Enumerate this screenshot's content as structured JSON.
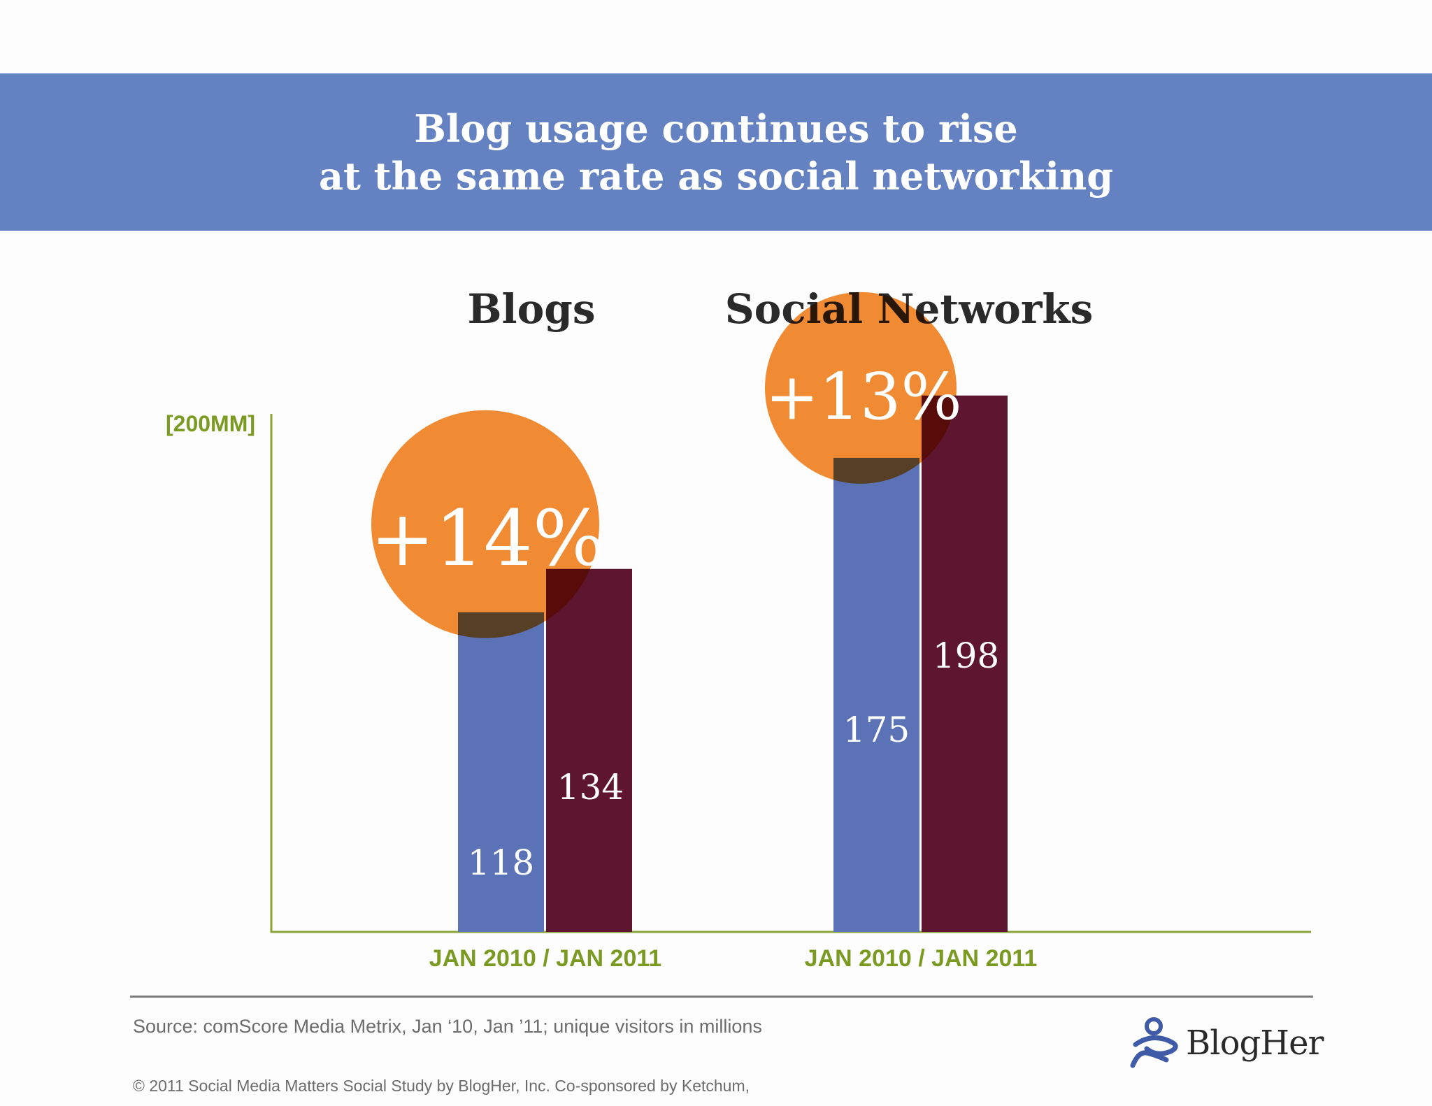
{
  "header": {
    "title_line1": "Blog usage continues to rise",
    "title_line2": "at the same rate as social networking"
  },
  "chart_data": {
    "type": "bar",
    "ylabel": "[200MM]",
    "ylim": [
      0,
      200
    ],
    "grid": false,
    "groups": [
      {
        "title": "Blogs",
        "category_label": "JAN 2010 / JAN 2011",
        "growth_label": "+14%",
        "values": [
          118,
          134
        ],
        "value_labels": [
          "118",
          "134"
        ]
      },
      {
        "title": "Social Networks",
        "category_label": "JAN 2010 / JAN 2011",
        "growth_label": "+13%",
        "values": [
          175,
          198
        ],
        "value_labels": [
          "175",
          "198"
        ]
      }
    ],
    "colors": {
      "jan_2010": "#5b73b6",
      "jan_2011": "#5d1530",
      "growth_circle": "#f28c33",
      "axis": "#8aa536",
      "axis_text": "#7a9a22"
    }
  },
  "footer": {
    "source": "Source: comScore Media Metrix, Jan ‘10, Jan ’11; unique visitors in millions",
    "copyright": "© 2011 Social Media Matters Social Study by BlogHer, Inc. Co-sponsored by Ketchum,",
    "logo_text": "BlogHer"
  }
}
